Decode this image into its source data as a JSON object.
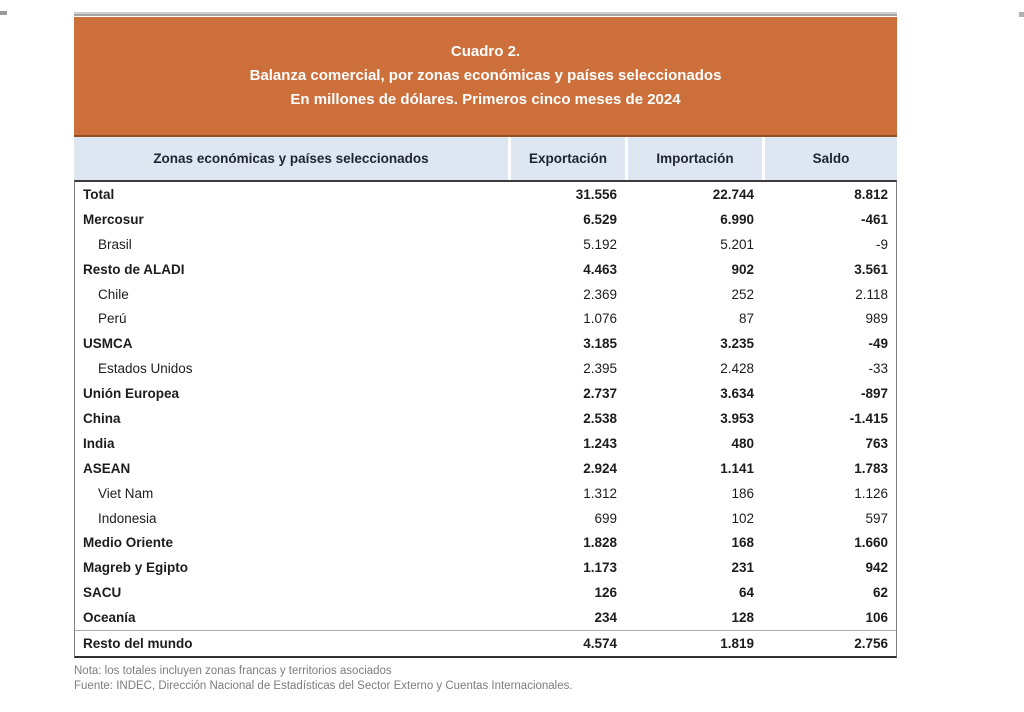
{
  "banner": {
    "line1": "Cuadro 2.",
    "line2": "Balanza comercial, por zonas económicas y países seleccionados",
    "line3": "En millones de dólares. Primeros cinco meses de 2024"
  },
  "table": {
    "headers": [
      "Zonas económicas y países seleccionados",
      "Exportación",
      "Importación",
      "Saldo"
    ],
    "rows": [
      {
        "name": "Total",
        "exportacion": "31.556",
        "importacion": "22.744",
        "saldo": "8.812",
        "indent": false
      },
      {
        "name": "Mercosur",
        "exportacion": "6.529",
        "importacion": "6.990",
        "saldo": "-461",
        "indent": false
      },
      {
        "name": "Brasil",
        "exportacion": "5.192",
        "importacion": "5.201",
        "saldo": "-9",
        "indent": true
      },
      {
        "name": "Resto de ALADI",
        "exportacion": "4.463",
        "importacion": "902",
        "saldo": "3.561",
        "indent": false
      },
      {
        "name": "Chile",
        "exportacion": "2.369",
        "importacion": "252",
        "saldo": "2.118",
        "indent": true
      },
      {
        "name": "Perú",
        "exportacion": "1.076",
        "importacion": "87",
        "saldo": "989",
        "indent": true
      },
      {
        "name": "USMCA",
        "exportacion": "3.185",
        "importacion": "3.235",
        "saldo": "-49",
        "indent": false
      },
      {
        "name": "Estados Unidos",
        "exportacion": "2.395",
        "importacion": "2.428",
        "saldo": "-33",
        "indent": true
      },
      {
        "name": "Unión Europea",
        "exportacion": "2.737",
        "importacion": "3.634",
        "saldo": "-897",
        "indent": false
      },
      {
        "name": "China",
        "exportacion": "2.538",
        "importacion": "3.953",
        "saldo": "-1.415",
        "indent": false
      },
      {
        "name": "India",
        "exportacion": "1.243",
        "importacion": "480",
        "saldo": "763",
        "indent": false
      },
      {
        "name": "ASEAN",
        "exportacion": "2.924",
        "importacion": "1.141",
        "saldo": "1.783",
        "indent": false
      },
      {
        "name": "Viet Nam",
        "exportacion": "1.312",
        "importacion": "186",
        "saldo": "1.126",
        "indent": true
      },
      {
        "name": "Indonesia",
        "exportacion": "699",
        "importacion": "102",
        "saldo": "597",
        "indent": true
      },
      {
        "name": "Medio Oriente",
        "exportacion": "1.828",
        "importacion": "168",
        "saldo": "1.660",
        "indent": false
      },
      {
        "name": "Magreb y Egipto",
        "exportacion": "1.173",
        "importacion": "231",
        "saldo": "942",
        "indent": false
      },
      {
        "name": "SACU",
        "exportacion": "126",
        "importacion": "64",
        "saldo": "62",
        "indent": false
      },
      {
        "name": "Oceanía",
        "exportacion": "234",
        "importacion": "128",
        "saldo": "106",
        "indent": false
      },
      {
        "name": "Resto del mundo",
        "exportacion": "4.574",
        "importacion": "1.819",
        "saldo": "2.756",
        "indent": false
      }
    ]
  },
  "notes": {
    "nota": "Nota: los totales incluyen zonas francas y territorios asociados",
    "fuente": "Fuente: INDEC, Dirección Nacional de Estadísticas del Sector Externo y Cuentas Internacionales."
  },
  "colors": {
    "banner_bg": "#cc6f3b",
    "banner_text": "#ffffff",
    "header_bg": "#dde6f1",
    "header_text": "#1e2433",
    "row_text": "#1c1c1c",
    "note_text": "#7d7d7d"
  }
}
